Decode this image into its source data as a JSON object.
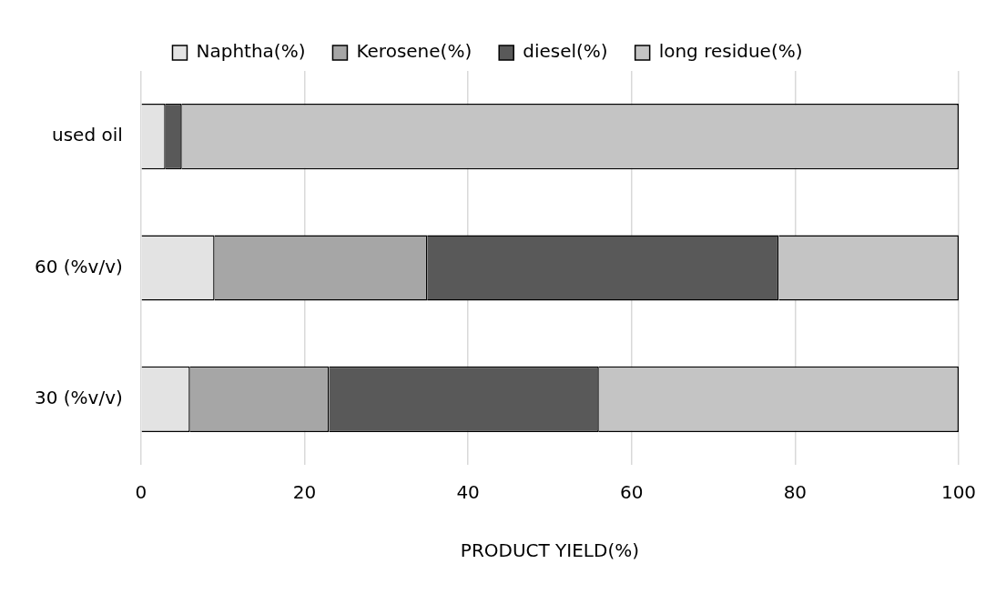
{
  "chart_data": {
    "type": "bar",
    "orientation": "horizontal",
    "stacked": true,
    "xlabel": "PRODUCT YIELD(%)",
    "categories": [
      "used oil",
      "60 (%v/v)",
      "30 (%v/v)"
    ],
    "series": [
      {
        "name": "Naphtha(%)",
        "color": "#e3e3e3",
        "values": [
          3,
          9,
          6
        ]
      },
      {
        "name": "Kerosene(%)",
        "color": "#a6a6a6",
        "values": [
          0,
          26,
          17
        ]
      },
      {
        "name": "diesel(%)",
        "color": "#595959",
        "values": [
          2,
          43,
          33
        ]
      },
      {
        "name": "long residue(%)",
        "color": "#c4c4c4",
        "values": [
          95,
          22,
          44
        ]
      }
    ],
    "xlim": [
      0,
      100
    ],
    "xticks": [
      0,
      20,
      40,
      60,
      80,
      100
    ],
    "grid": "x",
    "legend": "top"
  }
}
